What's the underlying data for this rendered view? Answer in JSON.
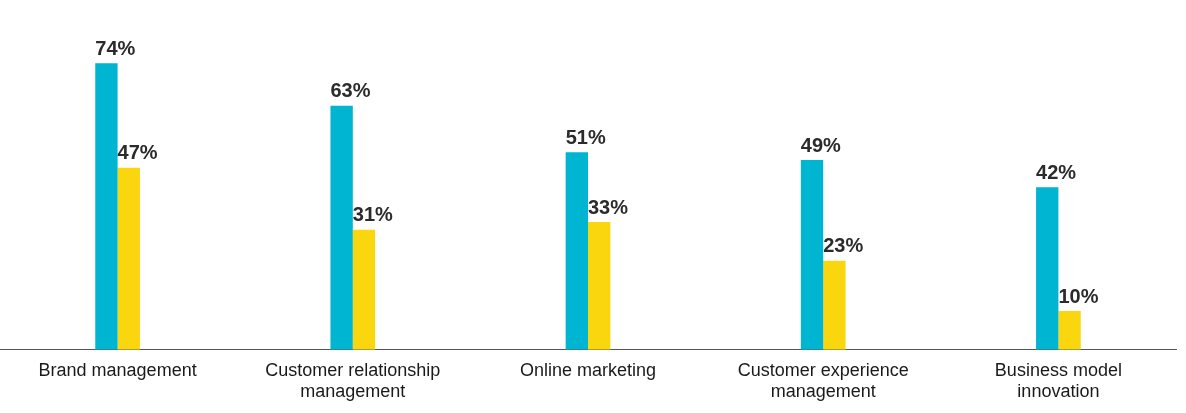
{
  "chart_data": {
    "type": "bar",
    "categories": [
      "Brand management",
      "Customer relationship management",
      "Online marketing",
      "Customer experience management",
      "Business model innovation"
    ],
    "series": [
      {
        "color": "#00b5d1",
        "values": [
          74,
          63,
          51,
          49,
          42
        ],
        "value_labels": [
          "74%",
          "63%",
          "51%",
          "49%",
          "42%"
        ]
      },
      {
        "color": "#fad60f",
        "values": [
          47,
          31,
          33,
          23,
          10
        ],
        "value_labels": [
          "47%",
          "31%",
          "33%",
          "23%",
          "10%"
        ]
      }
    ],
    "grid": false,
    "legend": false,
    "tick_labels": "x"
  }
}
